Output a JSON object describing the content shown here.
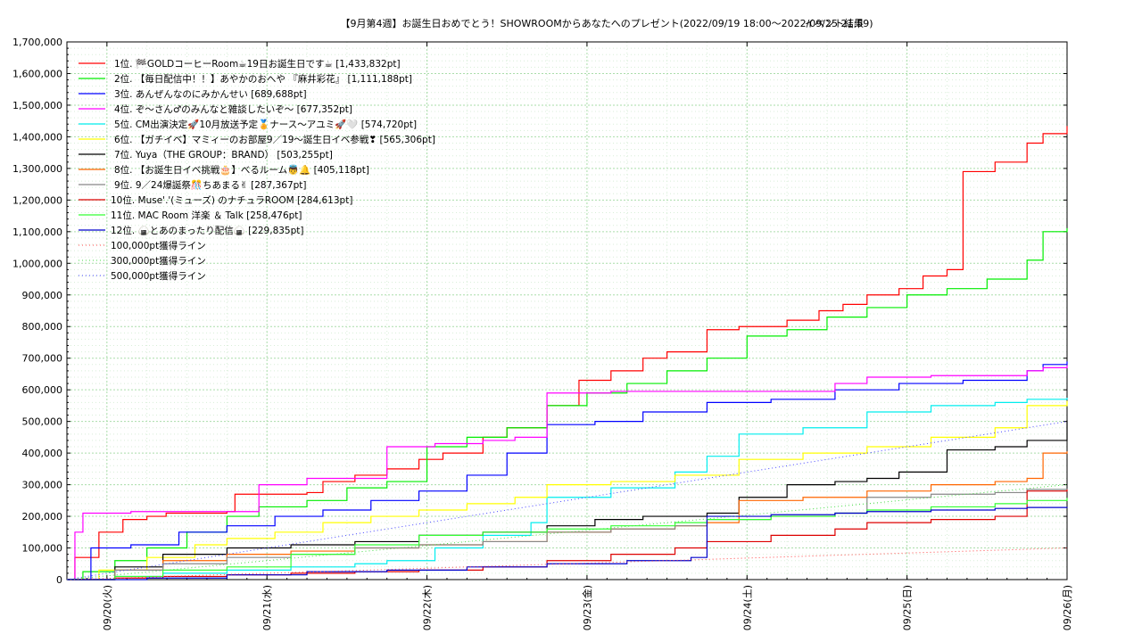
{
  "chart_data": {
    "type": "line",
    "title": "【9月第4週】お誕生日おめでとう！SHOWROOMからあなたへのプレゼント(2022/09/19 18:00〜2022/09/25 21:59)",
    "subtitle": "イベント結果",
    "ylim": [
      0,
      1700000
    ],
    "yticks": [
      "0",
      "100,000",
      "200,000",
      "300,000",
      "400,000",
      "500,000",
      "600,000",
      "700,000",
      "800,000",
      "900,000",
      "1,000,000",
      "1,100,000",
      "1,200,000",
      "1,300,000",
      "1,400,000",
      "1,500,000",
      "1,600,000",
      "1,700,000"
    ],
    "xlim": [
      "2022/09/19 18:00",
      "2022/09/26 00:00"
    ],
    "xticks": [
      "09/20(火)",
      "09/21(水)",
      "09/22(木)",
      "09/23(金)",
      "09/24(土)",
      "09/25(日)",
      "09/26(月)"
    ],
    "grid": true,
    "legend_position": "top-left",
    "series": [
      {
        "name": "1位. 🏁GOLDコーヒーRoom☕19日お誕生日です☕ [1,433,832pt]",
        "color": "#ff0000",
        "x": [
          0,
          0.05,
          0.2,
          0.35,
          0.5,
          0.62,
          1.0,
          1.05,
          1.5,
          1.6,
          1.8,
          2.0,
          2.2,
          2.35,
          2.6,
          2.75,
          3.0,
          3.2,
          3.4,
          3.6,
          3.75,
          4.0,
          4.2,
          4.5,
          4.7,
          4.85,
          5.0,
          5.2,
          5.35,
          5.5,
          5.6,
          5.8,
          6.0,
          6.1,
          6.25
        ],
        "y": [
          0,
          70000,
          150000,
          190000,
          200000,
          210000,
          215000,
          270000,
          275000,
          310000,
          330000,
          350000,
          380000,
          400000,
          450000,
          480000,
          550000,
          630000,
          660000,
          700000,
          720000,
          790000,
          800000,
          820000,
          850000,
          870000,
          900000,
          920000,
          960000,
          980000,
          1290000,
          1320000,
          1380000,
          1410000,
          1433832
        ]
      },
      {
        "name": "2位. 【毎日配信中！！】あやかのおへや 『麻井彩花』 [1,111,188pt]",
        "color": "#00ee00",
        "x": [
          0,
          0.1,
          0.3,
          0.5,
          0.75,
          1.0,
          1.2,
          1.5,
          1.75,
          2.0,
          2.25,
          2.5,
          2.75,
          3.0,
          3.25,
          3.5,
          3.75,
          4.0,
          4.25,
          4.5,
          4.75,
          5.0,
          5.25,
          5.5,
          5.75,
          6.0,
          6.1,
          6.25
        ],
        "y": [
          0,
          25000,
          60000,
          100000,
          150000,
          200000,
          230000,
          250000,
          290000,
          310000,
          420000,
          450000,
          480000,
          550000,
          590000,
          620000,
          660000,
          700000,
          770000,
          790000,
          830000,
          860000,
          900000,
          920000,
          950000,
          1010000,
          1100000,
          1111188
        ]
      },
      {
        "name": "3位. あんぜんなのにみかんせい [689,688pt]",
        "color": "#0000ff",
        "x": [
          0,
          0.15,
          0.4,
          0.7,
          1.0,
          1.3,
          1.6,
          1.9,
          2.2,
          2.5,
          2.75,
          3.0,
          3.3,
          3.6,
          4.0,
          4.4,
          4.8,
          5.2,
          5.6,
          6.0,
          6.1,
          6.25
        ],
        "y": [
          0,
          100000,
          110000,
          150000,
          170000,
          200000,
          220000,
          250000,
          280000,
          330000,
          400000,
          490000,
          500000,
          530000,
          560000,
          570000,
          600000,
          620000,
          630000,
          660000,
          680000,
          689688
        ]
      },
      {
        "name": "4位. ぞ〜さん♂のみんなと雑談したいぞ〜 [677,352pt]",
        "color": "#ff00ff",
        "x": [
          0,
          0.05,
          0.1,
          0.4,
          0.8,
          1.0,
          1.2,
          1.5,
          1.8,
          2.0,
          2.3,
          2.6,
          2.8,
          3.0,
          3.4,
          3.8,
          4.2,
          4.6,
          4.8,
          5.0,
          5.4,
          5.8,
          6.0,
          6.1,
          6.25
        ],
        "y": [
          0,
          150000,
          210000,
          215000,
          215000,
          215000,
          300000,
          320000,
          320000,
          420000,
          430000,
          440000,
          450000,
          590000,
          595000,
          595000,
          595000,
          595000,
          620000,
          640000,
          645000,
          645000,
          660000,
          670000,
          677352
        ]
      },
      {
        "name": "5位. CM出演決定🚀10月放送予定🏅ナース〜アユミ🚀🤍 [574,720pt]",
        "color": "#00eeee",
        "x": [
          0,
          0.3,
          0.6,
          1.0,
          1.4,
          1.8,
          2.0,
          2.3,
          2.6,
          2.9,
          3.0,
          3.4,
          3.8,
          4.0,
          4.2,
          4.6,
          5.0,
          5.4,
          5.8,
          6.0,
          6.25
        ],
        "y": [
          0,
          10000,
          20000,
          30000,
          40000,
          50000,
          60000,
          100000,
          140000,
          180000,
          260000,
          290000,
          340000,
          390000,
          460000,
          480000,
          530000,
          550000,
          560000,
          570000,
          574720
        ]
      },
      {
        "name": "6位. 【ガチイベ】マミィーのお部屋9／19〜誕生日イベ参戦❣ [565,306pt]",
        "color": "#ffff00",
        "x": [
          0,
          0.2,
          0.5,
          0.8,
          1.0,
          1.3,
          1.6,
          1.9,
          2.2,
          2.5,
          2.8,
          3.0,
          3.4,
          3.8,
          4.2,
          4.6,
          5.0,
          5.4,
          5.8,
          6.0,
          6.25
        ],
        "y": [
          0,
          30000,
          70000,
          110000,
          130000,
          150000,
          180000,
          200000,
          220000,
          240000,
          260000,
          300000,
          310000,
          330000,
          380000,
          400000,
          420000,
          450000,
          480000,
          550000,
          565306
        ]
      },
      {
        "name": "7位. Yuya（THE GROUP：BRAND） [503,255pt]",
        "color": "#000000",
        "x": [
          0,
          0.3,
          0.6,
          1.0,
          1.4,
          1.8,
          2.2,
          2.6,
          3.0,
          3.3,
          3.6,
          4.0,
          4.2,
          4.5,
          4.8,
          5.0,
          5.2,
          5.5,
          5.8,
          6.0,
          6.25
        ],
        "y": [
          0,
          40000,
          80000,
          100000,
          110000,
          120000,
          140000,
          150000,
          170000,
          190000,
          200000,
          210000,
          260000,
          300000,
          310000,
          320000,
          340000,
          410000,
          420000,
          440000,
          503255
        ]
      },
      {
        "name": "8位. 【お誕生日イベ挑戦🎂】べるルーム👼🔔 [405,118pt]",
        "color": "#ff6600",
        "x": [
          0,
          0.3,
          0.6,
          1.0,
          1.4,
          1.8,
          2.2,
          2.6,
          3.0,
          3.4,
          3.8,
          4.0,
          4.2,
          4.6,
          5.0,
          5.4,
          5.8,
          6.0,
          6.1,
          6.25
        ],
        "y": [
          0,
          30000,
          60000,
          80000,
          90000,
          100000,
          110000,
          120000,
          150000,
          160000,
          170000,
          180000,
          250000,
          260000,
          280000,
          300000,
          310000,
          320000,
          400000,
          405118
        ]
      },
      {
        "name": "9位. 9／24爆誕祭🎊ちあまる✌ [287,367pt]",
        "color": "#888888",
        "x": [
          0,
          0.3,
          0.6,
          1.0,
          1.4,
          1.8,
          2.2,
          2.6,
          3.0,
          3.4,
          3.8,
          4.0,
          4.4,
          4.8,
          5.0,
          5.4,
          5.8,
          6.0,
          6.25
        ],
        "y": [
          0,
          30000,
          50000,
          70000,
          80000,
          100000,
          110000,
          120000,
          150000,
          160000,
          170000,
          190000,
          200000,
          210000,
          260000,
          270000,
          275000,
          285000,
          287367
        ]
      },
      {
        "name": "10位. Muse'.'(ミューズ) のナチュラROOM [284,613pt]",
        "color": "#dd0000",
        "x": [
          0,
          0.3,
          0.6,
          1.0,
          1.4,
          1.8,
          2.2,
          2.6,
          3.0,
          3.4,
          3.8,
          4.0,
          4.4,
          4.8,
          5.0,
          5.4,
          5.8,
          6.0,
          6.25
        ],
        "y": [
          0,
          5000,
          10000,
          15000,
          20000,
          25000,
          30000,
          40000,
          60000,
          80000,
          100000,
          120000,
          140000,
          160000,
          180000,
          190000,
          200000,
          280000,
          284613
        ]
      },
      {
        "name": "11位. MAC Room 洋楽 ＆ Talk [258,476pt]",
        "color": "#33ff33",
        "x": [
          0,
          0.3,
          0.6,
          1.0,
          1.4,
          1.8,
          2.2,
          2.6,
          3.0,
          3.4,
          3.8,
          4.0,
          4.4,
          4.8,
          5.0,
          5.4,
          5.8,
          6.0,
          6.25
        ],
        "y": [
          0,
          10000,
          30000,
          40000,
          80000,
          110000,
          140000,
          150000,
          160000,
          170000,
          180000,
          190000,
          200000,
          210000,
          220000,
          230000,
          240000,
          250000,
          258476
        ]
      },
      {
        "name": "12位. 🍙とあのまったり配信🍙 [229,835pt]",
        "color": "#0000cc",
        "x": [
          0,
          0.5,
          1.0,
          1.5,
          2.0,
          2.5,
          3.0,
          3.5,
          3.9,
          4.0,
          4.4,
          4.8,
          5.0,
          5.4,
          5.8,
          6.0,
          6.25
        ],
        "y": [
          0,
          5000,
          15000,
          25000,
          30000,
          40000,
          50000,
          60000,
          70000,
          200000,
          205000,
          210000,
          215000,
          220000,
          225000,
          228000,
          229835
        ]
      },
      {
        "name": "100,000pt獲得ライン",
        "color": "#ff4444",
        "dotted": true,
        "x": [
          0,
          6.25
        ],
        "y": [
          0,
          100000
        ]
      },
      {
        "name": "300,000pt獲得ライン",
        "color": "#44dd44",
        "dotted": true,
        "x": [
          0,
          6.25
        ],
        "y": [
          0,
          300000
        ]
      },
      {
        "name": "500,000pt獲得ライン",
        "color": "#4444ff",
        "dotted": true,
        "x": [
          0,
          6.25
        ],
        "y": [
          0,
          500000
        ]
      }
    ]
  }
}
